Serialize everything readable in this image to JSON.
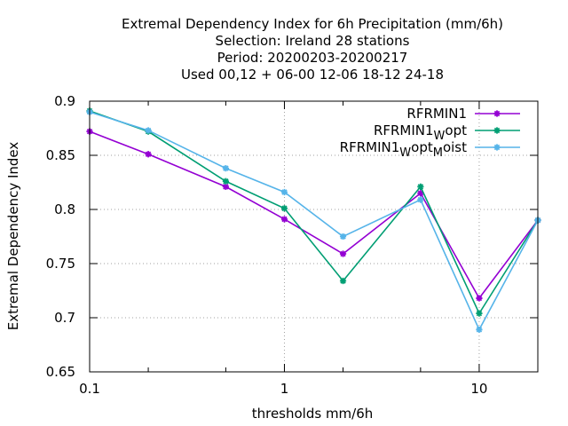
{
  "chart_data": {
    "type": "line",
    "title_lines": [
      "Extremal Dependency Index  for 6h Precipitation (mm/6h)",
      "Selection: Ireland      28 stations",
      "Period: 20200203-20200217",
      "Used  00,12  + 06-00 12-06 18-12 24-18"
    ],
    "xlabel": "thresholds mm/6h",
    "ylabel": "Extremal Dependency Index",
    "x_scale": "log",
    "xlim": [
      0.1,
      20
    ],
    "ylim": [
      0.65,
      0.9
    ],
    "x_ticks": [
      {
        "value": 0.1,
        "label": "0.1"
      },
      {
        "value": 1,
        "label": "1"
      },
      {
        "value": 10,
        "label": "10"
      }
    ],
    "x_minor_ticks": [
      0.2,
      0.5,
      2,
      5,
      20
    ],
    "y_ticks": [
      {
        "value": 0.65,
        "label": "0.65"
      },
      {
        "value": 0.7,
        "label": "0.7"
      },
      {
        "value": 0.75,
        "label": "0.75"
      },
      {
        "value": 0.8,
        "label": "0.8"
      },
      {
        "value": 0.85,
        "label": "0.85"
      },
      {
        "value": 0.9,
        "label": "0.9"
      }
    ],
    "grid": true,
    "legend_placement": "top-right",
    "x": [
      0.1,
      0.2,
      0.5,
      1,
      2,
      5,
      10,
      20
    ],
    "series": [
      {
        "name": "RFRMIN1",
        "legend": [
          {
            "text": "RFRMIN1",
            "sub": false
          }
        ],
        "color": "#9400d3",
        "values": [
          0.872,
          0.851,
          0.821,
          0.791,
          0.759,
          0.815,
          0.718,
          0.79
        ]
      },
      {
        "name": "RFRMIN1_Wopt",
        "legend": [
          {
            "text": "RFRMIN1",
            "sub": false
          },
          {
            "text": "W",
            "sub": true
          },
          {
            "text": "opt",
            "sub": false
          }
        ],
        "color": "#009e73",
        "values": [
          0.891,
          0.872,
          0.826,
          0.801,
          0.734,
          0.821,
          0.704,
          0.79
        ]
      },
      {
        "name": "RFRMIN1_Wopt_Moist",
        "legend": [
          {
            "text": "RFRMIN1",
            "sub": false
          },
          {
            "text": "W",
            "sub": true
          },
          {
            "text": "opt",
            "sub": false
          },
          {
            "text": "M",
            "sub": true
          },
          {
            "text": "oist",
            "sub": false
          }
        ],
        "color": "#56b4e9",
        "values": [
          0.89,
          0.873,
          0.838,
          0.816,
          0.775,
          0.809,
          0.689,
          0.79
        ]
      }
    ]
  }
}
